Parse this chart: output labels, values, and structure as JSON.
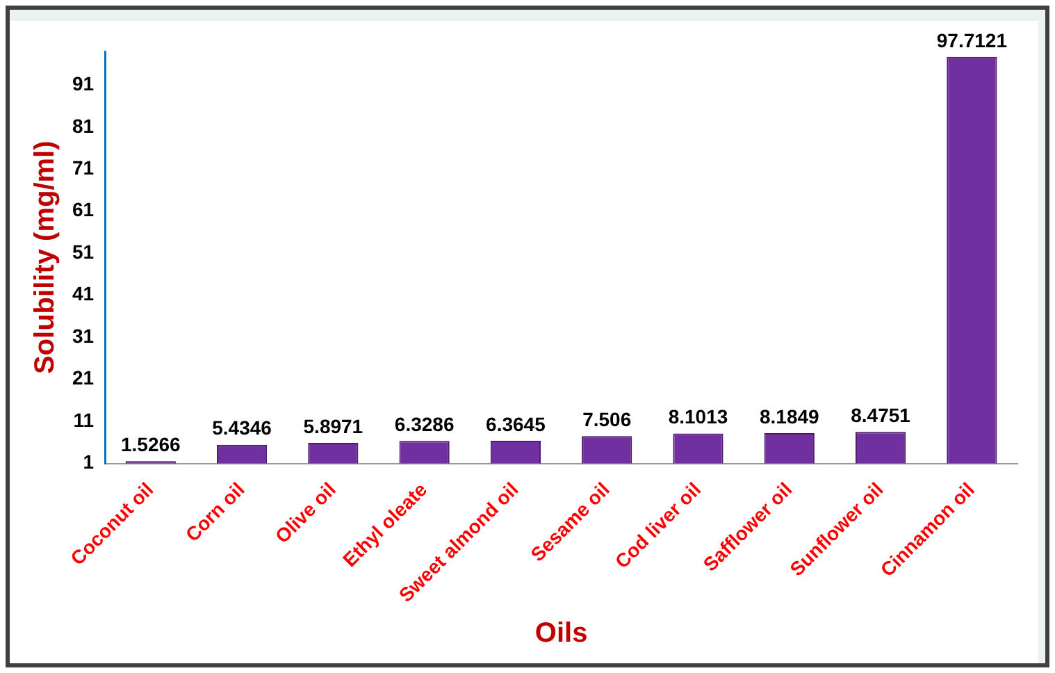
{
  "chart_data": {
    "type": "bar",
    "xlabel": "Oils",
    "ylabel": "Solubility (mg/ml)",
    "categories": [
      "Coconut oil",
      "Corn oil",
      "Olive oil",
      "Ethyl oleate",
      "Sweet almond oil",
      "Sesame oil",
      "Cod liver oil",
      "Safflower oil",
      "Sunflower oil",
      "Cinnamon oil"
    ],
    "values": [
      1.5266,
      5.4346,
      5.8971,
      6.3286,
      6.3645,
      7.506,
      8.1013,
      8.1849,
      8.4751,
      97.7121
    ],
    "color": "#7030a0",
    "ylim": [
      1,
      99
    ],
    "yticks": [
      1,
      11,
      21,
      31,
      41,
      51,
      61,
      71,
      81,
      91
    ],
    "data_labels": true,
    "grid": false,
    "legend": false
  }
}
